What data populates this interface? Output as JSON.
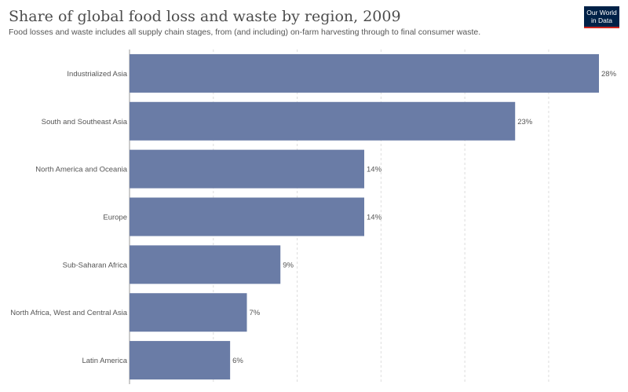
{
  "header": {
    "title": "Share of global food loss and waste by region, 2009",
    "subtitle": "Food losses and waste includes all supply chain stages, from (and including) on-farm harvesting through to final consumer waste.",
    "logo_line1": "Our World",
    "logo_line2": "in Data"
  },
  "colors": {
    "bar": "#6a7ca6",
    "grid": "#dddddd",
    "axis": "#999999"
  },
  "chart_data": {
    "type": "bar",
    "orientation": "horizontal",
    "categories": [
      "Industrialized Asia",
      "South and Southeast Asia",
      "North America and Oceania",
      "Europe",
      "Sub-Saharan Africa",
      "North Africa, West and Central Asia",
      "Latin America"
    ],
    "values": [
      28,
      23,
      14,
      14,
      9,
      7,
      6
    ],
    "value_labels": [
      "28%",
      "23%",
      "14%",
      "14%",
      "9%",
      "7%",
      "6%"
    ],
    "unit": "%",
    "xlim": [
      0,
      28
    ],
    "grid": true
  }
}
